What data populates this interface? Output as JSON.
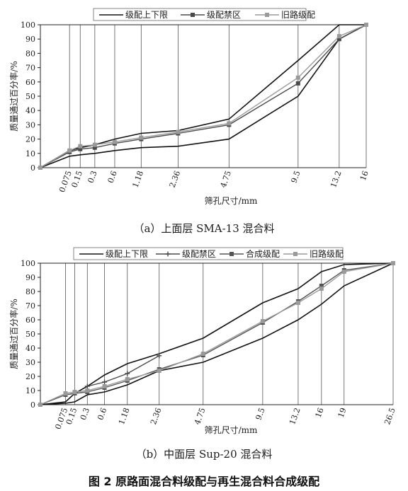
{
  "figure_caption": "图 2 原路面混合料级配与再生混合料合成级配",
  "colors": {
    "limits": "#111111",
    "restricted": "#4a4a4a",
    "synthetic": "#555555",
    "old": "#9a9a9a",
    "grid": "#555555"
  },
  "chart_data": [
    {
      "type": "line",
      "caption": "（a）上面层 SMA-13 混合料",
      "xlabel": "筛孔尺寸/mm",
      "ylabel": "质量通过百分率/%",
      "ylim": [
        0,
        100
      ],
      "yticks": [
        0,
        10,
        20,
        30,
        40,
        50,
        60,
        70,
        80,
        90,
        100
      ],
      "x_scale": "power 0.45",
      "grid": "vertical lines at sieve sizes",
      "legend_position": "top",
      "x": [
        0.075,
        0.15,
        0.3,
        0.6,
        1.18,
        2.36,
        4.75,
        9.5,
        13.2,
        16
      ],
      "x_labels": [
        "0.075",
        "0.15",
        "0.3",
        "0.6",
        "1.18",
        "2.36",
        "4.75",
        "9.5",
        "13.2",
        "16"
      ],
      "legend": [
        {
          "label": "级配上下限",
          "key": "limits",
          "marker": "none"
        },
        {
          "label": "级配禁区",
          "key": "restricted",
          "marker": "square"
        },
        {
          "label": "旧路级配",
          "key": "old",
          "marker": "square"
        }
      ],
      "series": [
        {
          "key": "limits",
          "marker": "none",
          "points": [
            [
              0,
              0
            ],
            [
              0.075,
              12
            ],
            [
              0.15,
              14
            ],
            [
              0.3,
              16
            ],
            [
              0.6,
              20
            ],
            [
              1.18,
              24
            ],
            [
              2.36,
              26
            ],
            [
              4.75,
              34
            ],
            [
              9.5,
              75
            ],
            [
              13.2,
              100
            ],
            [
              16,
              100
            ]
          ]
        },
        {
          "key": "limits",
          "marker": "none",
          "points": [
            [
              0,
              0
            ],
            [
              0.075,
              8
            ],
            [
              0.15,
              9
            ],
            [
              0.3,
              10
            ],
            [
              0.6,
              12
            ],
            [
              1.18,
              14
            ],
            [
              2.36,
              15
            ],
            [
              4.75,
              20
            ],
            [
              9.5,
              50
            ],
            [
              13.2,
              90
            ],
            [
              16,
              100
            ]
          ]
        },
        {
          "name": "级配禁区",
          "key": "restricted",
          "marker": "square",
          "points": [
            [
              0,
              0
            ],
            [
              0.075,
              11
            ],
            [
              0.15,
              13
            ],
            [
              0.3,
              14
            ],
            [
              0.6,
              17
            ],
            [
              1.18,
              20
            ],
            [
              2.36,
              24
            ],
            [
              4.75,
              30
            ],
            [
              9.5,
              59
            ],
            [
              13.2,
              90
            ],
            [
              16,
              100
            ]
          ]
        },
        {
          "name": "旧路级配",
          "key": "old",
          "marker": "square",
          "points": [
            [
              0,
              0
            ],
            [
              0.075,
              12
            ],
            [
              0.15,
              15
            ],
            [
              0.3,
              16
            ],
            [
              0.6,
              18
            ],
            [
              1.18,
              21
            ],
            [
              2.36,
              25
            ],
            [
              4.75,
              31
            ],
            [
              9.5,
              63
            ],
            [
              13.2,
              92
            ],
            [
              16,
              100
            ]
          ]
        }
      ]
    },
    {
      "type": "line",
      "caption": "（b）中面层 Sup-20 混合料",
      "xlabel": "筛孔尺寸/mm",
      "ylabel": "质量通过百分率/%",
      "ylim": [
        0,
        100
      ],
      "yticks": [
        0,
        10,
        20,
        30,
        40,
        50,
        60,
        70,
        80,
        90,
        100
      ],
      "x_scale": "power 0.45",
      "grid": "vertical lines at sieve sizes",
      "legend_position": "top",
      "x": [
        0.075,
        0.15,
        0.3,
        0.6,
        1.18,
        2.36,
        4.75,
        9.5,
        13.2,
        16,
        19,
        26.5
      ],
      "x_labels": [
        "0.075",
        "0.15",
        "0.3",
        "0.6",
        "1.18",
        "2.36",
        "4.75",
        "9.5",
        "13.2",
        "16",
        "19",
        "26.5"
      ],
      "legend": [
        {
          "label": "级配上下限",
          "key": "limits",
          "marker": "none"
        },
        {
          "label": "级配禁区",
          "key": "restricted",
          "marker": "plus"
        },
        {
          "label": "合成级配",
          "key": "synthetic",
          "marker": "square"
        },
        {
          "label": "旧路级配",
          "key": "old",
          "marker": "square"
        }
      ],
      "series": [
        {
          "key": "limits",
          "marker": "none",
          "points": [
            [
              0,
              0
            ],
            [
              0.075,
              2
            ],
            [
              0.15,
              8
            ],
            [
              0.3,
              13
            ],
            [
              0.6,
              21
            ],
            [
              1.18,
              29
            ],
            [
              2.36,
              36
            ],
            [
              4.75,
              47
            ],
            [
              9.5,
              72
            ],
            [
              13.2,
              82
            ],
            [
              16,
              94
            ],
            [
              19,
              99
            ],
            [
              26.5,
              100
            ]
          ]
        },
        {
          "key": "limits",
          "marker": "none",
          "points": [
            [
              0,
              0
            ],
            [
              0.075,
              1
            ],
            [
              0.15,
              2
            ],
            [
              0.3,
              7
            ],
            [
              0.6,
              9
            ],
            [
              1.18,
              14
            ],
            [
              2.36,
              24
            ],
            [
              4.75,
              30
            ],
            [
              9.5,
              47
            ],
            [
              13.2,
              60
            ],
            [
              16,
              71
            ],
            [
              19,
              84
            ],
            [
              26.5,
              100
            ]
          ]
        },
        {
          "name": "级配禁区",
          "key": "restricted",
          "marker": "plus",
          "points": [
            [
              0.3,
              13
            ],
            [
              0.6,
              16
            ],
            [
              1.18,
              22
            ],
            [
              2.36,
              34.6
            ]
          ]
        },
        {
          "name": "合成级配",
          "key": "synthetic",
          "marker": "square",
          "points": [
            [
              0,
              0
            ],
            [
              0.075,
              7
            ],
            [
              0.15,
              8
            ],
            [
              0.3,
              9
            ],
            [
              0.6,
              12
            ],
            [
              1.18,
              17
            ],
            [
              2.36,
              25
            ],
            [
              4.75,
              35
            ],
            [
              9.5,
              58
            ],
            [
              13.2,
              73
            ],
            [
              16,
              84
            ],
            [
              19,
              95
            ],
            [
              26.5,
              100
            ]
          ]
        },
        {
          "name": "旧路级配",
          "key": "old",
          "marker": "square",
          "points": [
            [
              0,
              0
            ],
            [
              0.075,
              8
            ],
            [
              0.15,
              9
            ],
            [
              0.3,
              10
            ],
            [
              0.6,
              13
            ],
            [
              1.18,
              18
            ],
            [
              2.36,
              24
            ],
            [
              4.75,
              36
            ],
            [
              9.5,
              59
            ],
            [
              13.2,
              72
            ],
            [
              16,
              82
            ],
            [
              19,
              94
            ],
            [
              26.5,
              100
            ]
          ]
        }
      ]
    }
  ]
}
